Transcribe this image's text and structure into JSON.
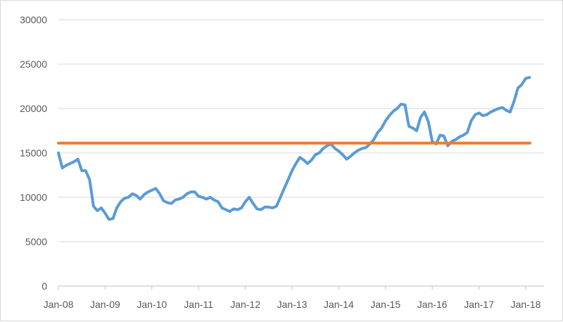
{
  "chart_data": {
    "type": "line",
    "title": "",
    "xlabel": "",
    "ylabel": "",
    "ylim": [
      0,
      30000
    ],
    "y_ticks": [
      0,
      5000,
      10000,
      15000,
      20000,
      25000,
      30000
    ],
    "y_tick_labels": [
      "0",
      "5000",
      "10000",
      "15000",
      "20000",
      "25000",
      "30000"
    ],
    "x_range": [
      "2008-01",
      "2018-02"
    ],
    "x_ticks": [
      "2008-01",
      "2009-01",
      "2010-01",
      "2011-01",
      "2012-01",
      "2013-01",
      "2014-01",
      "2015-01",
      "2016-01",
      "2017-01",
      "2018-01"
    ],
    "x_tick_labels": [
      "Jan-08",
      "Jan-09",
      "Jan-10",
      "Jan-11",
      "Jan-12",
      "Jan-13",
      "Jan-14",
      "Jan-15",
      "Jan-16",
      "Jan-17",
      "Jan-18"
    ],
    "grid": "horizontal",
    "legend": "none",
    "series": [
      {
        "color": "#5b9bd5",
        "x": [
          "2008-01",
          "2008-02",
          "2008-03",
          "2008-04",
          "2008-05",
          "2008-06",
          "2008-07",
          "2008-08",
          "2008-09",
          "2008-10",
          "2008-11",
          "2008-12",
          "2009-01",
          "2009-02",
          "2009-03",
          "2009-04",
          "2009-05",
          "2009-06",
          "2009-07",
          "2009-08",
          "2009-09",
          "2009-10",
          "2009-11",
          "2009-12",
          "2010-01",
          "2010-02",
          "2010-03",
          "2010-04",
          "2010-05",
          "2010-06",
          "2010-07",
          "2010-08",
          "2010-09",
          "2010-10",
          "2010-11",
          "2010-12",
          "2011-01",
          "2011-02",
          "2011-03",
          "2011-04",
          "2011-05",
          "2011-06",
          "2011-07",
          "2011-08",
          "2011-09",
          "2011-10",
          "2011-11",
          "2011-12",
          "2012-01",
          "2012-02",
          "2012-03",
          "2012-04",
          "2012-05",
          "2012-06",
          "2012-07",
          "2012-08",
          "2012-09",
          "2012-10",
          "2012-11",
          "2012-12",
          "2013-01",
          "2013-02",
          "2013-03",
          "2013-04",
          "2013-05",
          "2013-06",
          "2013-07",
          "2013-08",
          "2013-09",
          "2013-10",
          "2013-11",
          "2013-12",
          "2014-01",
          "2014-02",
          "2014-03",
          "2014-04",
          "2014-05",
          "2014-06",
          "2014-07",
          "2014-08",
          "2014-09",
          "2014-10",
          "2014-11",
          "2014-12",
          "2015-01",
          "2015-02",
          "2015-03",
          "2015-04",
          "2015-05",
          "2015-06",
          "2015-07",
          "2015-08",
          "2015-09",
          "2015-10",
          "2015-11",
          "2015-12",
          "2016-01",
          "2016-02",
          "2016-03",
          "2016-04",
          "2016-05",
          "2016-06",
          "2016-07",
          "2016-08",
          "2016-09",
          "2016-10",
          "2016-11",
          "2016-12",
          "2017-01",
          "2017-02",
          "2017-03",
          "2017-04",
          "2017-05",
          "2017-06",
          "2017-07",
          "2017-08",
          "2017-09",
          "2017-10",
          "2017-11",
          "2017-12",
          "2018-01",
          "2018-02"
        ],
        "values": [
          15000,
          13300,
          13600,
          13800,
          14000,
          14300,
          13000,
          13000,
          12000,
          9000,
          8500,
          8800,
          8200,
          7500,
          7600,
          8800,
          9500,
          9900,
          10000,
          10400,
          10200,
          9800,
          10300,
          10600,
          10800,
          11000,
          10400,
          9600,
          9400,
          9300,
          9700,
          9800,
          10000,
          10400,
          10600,
          10600,
          10100,
          10000,
          9800,
          10000,
          9700,
          9500,
          8800,
          8600,
          8400,
          8700,
          8600,
          8800,
          9500,
          10000,
          9300,
          8700,
          8600,
          8900,
          8900,
          8800,
          9000,
          10000,
          11000,
          12000,
          13000,
          13800,
          14500,
          14200,
          13800,
          14200,
          14800,
          15000,
          15500,
          15800,
          16000,
          15500,
          15200,
          14800,
          14300,
          14600,
          15000,
          15300,
          15500,
          15600,
          16000,
          16500,
          17300,
          17800,
          18600,
          19200,
          19700,
          20000,
          20500,
          20400,
          18000,
          17800,
          17500,
          19000,
          19600,
          18500,
          16300,
          16000,
          17000,
          16900,
          15800,
          16300,
          16500,
          16800,
          17000,
          17300,
          18600,
          19300,
          19500,
          19200,
          19300,
          19600,
          19800,
          20000,
          20100,
          19800,
          19600,
          20800,
          22300,
          22700,
          23400,
          23500
        ]
      },
      {
        "color": "#ed7d31",
        "x": [
          "2008-01",
          "2018-02"
        ],
        "values": [
          16100,
          16100
        ]
      }
    ]
  }
}
